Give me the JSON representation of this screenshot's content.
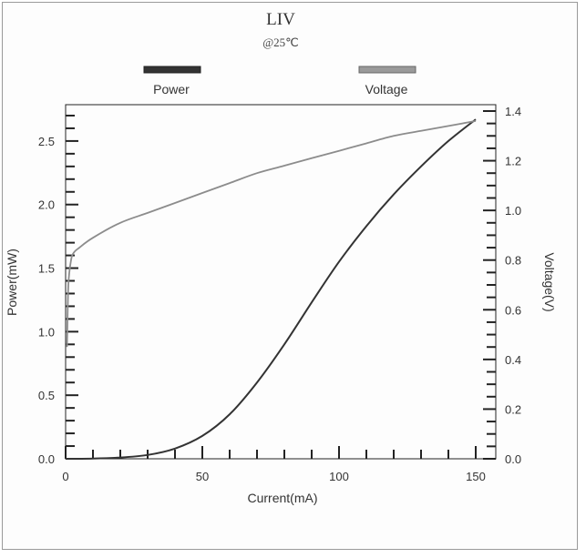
{
  "chart_data": {
    "type": "line",
    "title": "LIV",
    "subtitle": "@25℃",
    "xlabel": "Current(mA)",
    "ylabel": "Power(mW)",
    "y2label": "Voltage(V)",
    "xlim": [
      0,
      150
    ],
    "ylim": [
      0,
      2.75
    ],
    "y2lim": [
      0,
      1.4
    ],
    "x_ticks": [
      0,
      50,
      100,
      150
    ],
    "y_ticks": [
      0.0,
      0.5,
      1.0,
      1.5,
      2.0,
      2.5
    ],
    "y2_ticks": [
      0.0,
      0.2,
      0.4,
      0.6,
      0.8,
      1.0,
      1.2,
      1.4
    ],
    "legend_position": "top",
    "series": [
      {
        "name": "Power",
        "axis": "left",
        "color": "#333333",
        "x": [
          0,
          10,
          20,
          30,
          40,
          50,
          60,
          70,
          80,
          90,
          100,
          110,
          120,
          130,
          140,
          150
        ],
        "values": [
          0.0,
          0.002,
          0.01,
          0.03,
          0.08,
          0.18,
          0.35,
          0.6,
          0.9,
          1.23,
          1.55,
          1.83,
          2.08,
          2.3,
          2.5,
          2.67
        ]
      },
      {
        "name": "Voltage",
        "axis": "right",
        "color": "#8c8c8c",
        "x": [
          0.5,
          1,
          2,
          3,
          5,
          10,
          20,
          30,
          40,
          50,
          60,
          70,
          80,
          90,
          100,
          110,
          120,
          130,
          140,
          150
        ],
        "values": [
          0.45,
          0.7,
          0.8,
          0.83,
          0.85,
          0.89,
          0.95,
          0.99,
          1.03,
          1.07,
          1.11,
          1.15,
          1.18,
          1.21,
          1.24,
          1.27,
          1.3,
          1.32,
          1.34,
          1.36
        ]
      }
    ]
  }
}
